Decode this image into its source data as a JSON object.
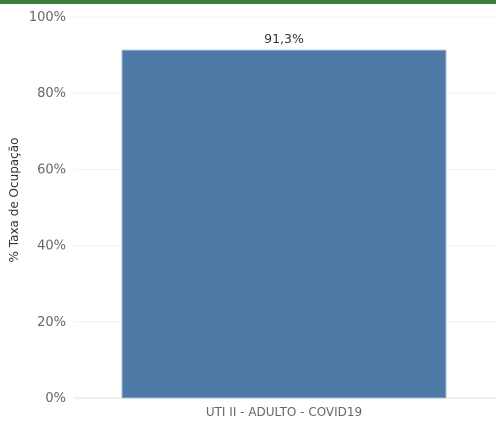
{
  "header": {
    "accent_color": "#3a7d3a"
  },
  "chart_data": {
    "type": "bar",
    "categories": [
      "UTI II - ADULTO - COVID19"
    ],
    "values": [
      91.3
    ],
    "data_labels": [
      "91,3%"
    ],
    "ylabel": "% Taxa de Ocupação",
    "ylim": [
      0,
      100
    ],
    "yticks": [
      0,
      20,
      40,
      60,
      80,
      100
    ],
    "ytick_labels": [
      "0%",
      "20%",
      "40%",
      "60%",
      "80%",
      "100%"
    ],
    "grid": true,
    "bar_color": "#4e79a7",
    "bar_edge_color": "#a9bdd6"
  }
}
